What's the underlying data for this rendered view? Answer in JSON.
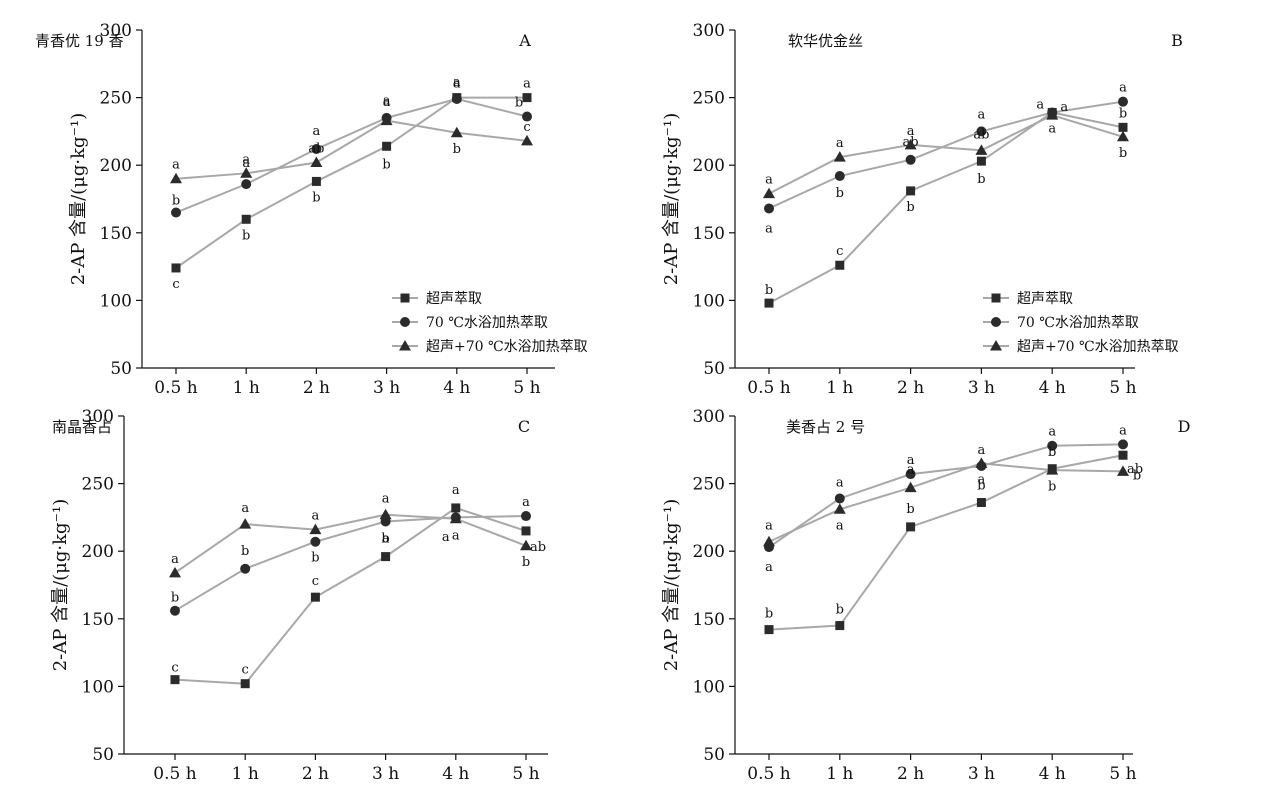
{
  "chart_data": [
    {
      "type": "line",
      "title": "青香优 19 香",
      "panel": "A",
      "ylabel": "2-AP 含量/(μg·kg⁻¹)",
      "categories": [
        "0.5 h",
        "1 h",
        "2 h",
        "3 h",
        "4 h",
        "5 h"
      ],
      "yticks": [
        "50",
        "100",
        "150",
        "200",
        "250",
        "300"
      ],
      "ylim": [
        50,
        300
      ],
      "series": [
        {
          "name": "超声萃取",
          "marker": "square",
          "values": [
            124,
            160,
            188,
            214,
            250,
            250
          ],
          "labels": [
            "c",
            "b",
            "b",
            "b",
            "a",
            "a"
          ]
        },
        {
          "name": "70 ℃水浴加热萃取",
          "marker": "circle",
          "values": [
            165,
            186,
            212,
            235,
            249,
            236
          ],
          "labels": [
            "b",
            "a",
            "a",
            "a",
            "a",
            "b"
          ]
        },
        {
          "name": "超声+70 ℃水浴加热萃取",
          "marker": "triangle",
          "values": [
            190,
            194,
            202,
            233,
            224,
            218
          ],
          "labels": [
            "a",
            "a",
            "ab",
            "a",
            "b",
            "c"
          ]
        }
      ]
    },
    {
      "type": "line",
      "title": "软华优金丝",
      "panel": "B",
      "ylabel": "2-AP 含量/(μg·kg⁻¹)",
      "categories": [
        "0.5 h",
        "1 h",
        "2 h",
        "3 h",
        "4 h",
        "5 h"
      ],
      "yticks": [
        "50",
        "100",
        "150",
        "200",
        "250",
        "300"
      ],
      "ylim": [
        50,
        300
      ],
      "series": [
        {
          "name": "超声萃取",
          "marker": "square",
          "values": [
            98,
            126,
            181,
            203,
            239,
            228
          ],
          "labels": [
            "b",
            "c",
            "b",
            "b",
            "a",
            "b"
          ]
        },
        {
          "name": "70 ℃水浴加热萃取",
          "marker": "circle",
          "values": [
            168,
            192,
            204,
            225,
            239,
            247
          ],
          "labels": [
            "a",
            "b",
            "ab",
            "a",
            "a",
            "a"
          ]
        },
        {
          "name": "超声+70 ℃水浴加热萃取",
          "marker": "triangle",
          "values": [
            179,
            206,
            215,
            211,
            237,
            221
          ],
          "labels": [
            "a",
            "a",
            "a",
            "ab",
            "a",
            "b"
          ]
        }
      ]
    },
    {
      "type": "line",
      "title": "南晶香占",
      "panel": "C",
      "ylabel": "2-AP 含量/(μg·kg⁻¹)",
      "categories": [
        "0.5 h",
        "1 h",
        "2 h",
        "3 h",
        "4 h",
        "5 h"
      ],
      "yticks": [
        "50",
        "100",
        "150",
        "200",
        "250",
        "300"
      ],
      "ylim": [
        50,
        300
      ],
      "series": [
        {
          "name": "超声萃取",
          "marker": "square",
          "values": [
            105,
            102,
            166,
            196,
            232,
            215
          ],
          "labels": [
            "c",
            "c",
            "c",
            "a",
            "a",
            "ab"
          ]
        },
        {
          "name": "70 ℃水浴加热萃取",
          "marker": "circle",
          "values": [
            156,
            187,
            207,
            222,
            225,
            226
          ],
          "labels": [
            "b",
            "b",
            "b",
            "b",
            "a",
            "a"
          ]
        },
        {
          "name": "超声+70 ℃水浴加热萃取",
          "marker": "triangle",
          "values": [
            184,
            220,
            216,
            227,
            224,
            204
          ],
          "labels": [
            "a",
            "a",
            "a",
            "a",
            "a",
            "b"
          ]
        }
      ]
    },
    {
      "type": "line",
      "title": "美香占 2 号",
      "panel": "D",
      "ylabel": "2-AP 含量/(μg·kg⁻¹)",
      "categories": [
        "0.5 h",
        "1 h",
        "2 h",
        "3 h",
        "4 h",
        "5 h"
      ],
      "yticks": [
        "50",
        "100",
        "150",
        "200",
        "250",
        "300"
      ],
      "ylim": [
        50,
        300
      ],
      "series": [
        {
          "name": "超声萃取",
          "marker": "square",
          "values": [
            142,
            145,
            218,
            236,
            261,
            271
          ],
          "labels": [
            "b",
            "b",
            "b",
            "b",
            "b",
            "ab"
          ]
        },
        {
          "name": "70 ℃水浴加热萃取",
          "marker": "circle",
          "values": [
            203,
            239,
            257,
            263,
            278,
            279
          ],
          "labels": [
            "a",
            "a",
            "a",
            "a",
            "a",
            "a"
          ]
        },
        {
          "name": "超声+70 ℃水浴加热萃取",
          "marker": "triangle",
          "values": [
            207,
            231,
            247,
            265,
            260,
            259
          ],
          "labels": [
            "a",
            "a",
            "a",
            "a",
            "b",
            "b"
          ]
        }
      ]
    }
  ],
  "colors": {
    "line": "#a8a8a8",
    "marker": "#2b2b2b",
    "axis": "#111111",
    "text": "#111111",
    "background": "#ffffff"
  }
}
